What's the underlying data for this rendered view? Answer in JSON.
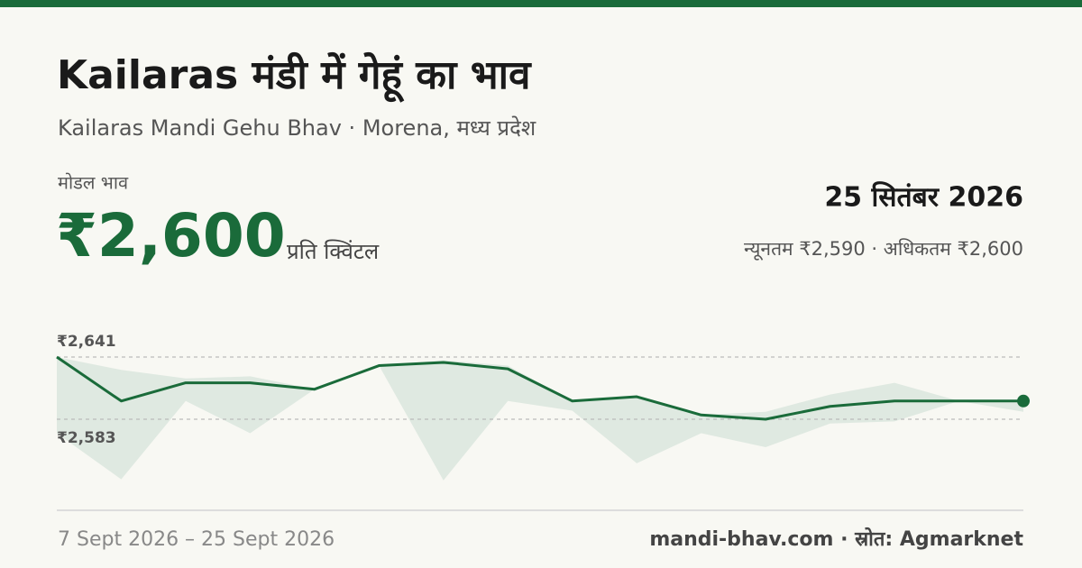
{
  "header": {
    "title": "Kailaras मंडी में गेहूं का भाव",
    "subtitle": "Kailaras Mandi Gehu Bhav · Morena, मध्य प्रदेश"
  },
  "price": {
    "label": "मोडल भाव",
    "value": "₹2,600",
    "unit": "प्रति क्विंटल",
    "date": "25 सितंबर 2026",
    "range": "न्यूनतम ₹2,590 · अधिकतम ₹2,600"
  },
  "chart_data": {
    "type": "line",
    "values": [
      2641,
      2600,
      2617,
      2617,
      2611,
      2633,
      2636,
      2630,
      2600,
      2604,
      2587,
      2583,
      2595,
      2600,
      2600,
      2600
    ],
    "color": "#1a6b3a",
    "range_high": [
      2641,
      2629,
      2621,
      2623,
      2611,
      2633,
      2638,
      2633,
      2600,
      2604,
      2587,
      2590,
      2606,
      2617,
      2600,
      2600
    ],
    "range_low": [
      2570,
      2527,
      2600,
      2570,
      2611,
      2633,
      2526,
      2600,
      2591,
      2542,
      2570,
      2557,
      2579,
      2581,
      2600,
      2590
    ],
    "range_color": "#dfe9e1",
    "ylim": [
      2500,
      2700
    ],
    "yticks": [
      {
        "value": 2641,
        "label": "₹2,641"
      },
      {
        "value": 2583,
        "label": "₹2,583"
      }
    ],
    "grid": true
  },
  "footer": {
    "period": "7 Sept 2026 – 25 Sept 2026",
    "source": "mandi-bhav.com · स्रोत: Agmarknet"
  }
}
